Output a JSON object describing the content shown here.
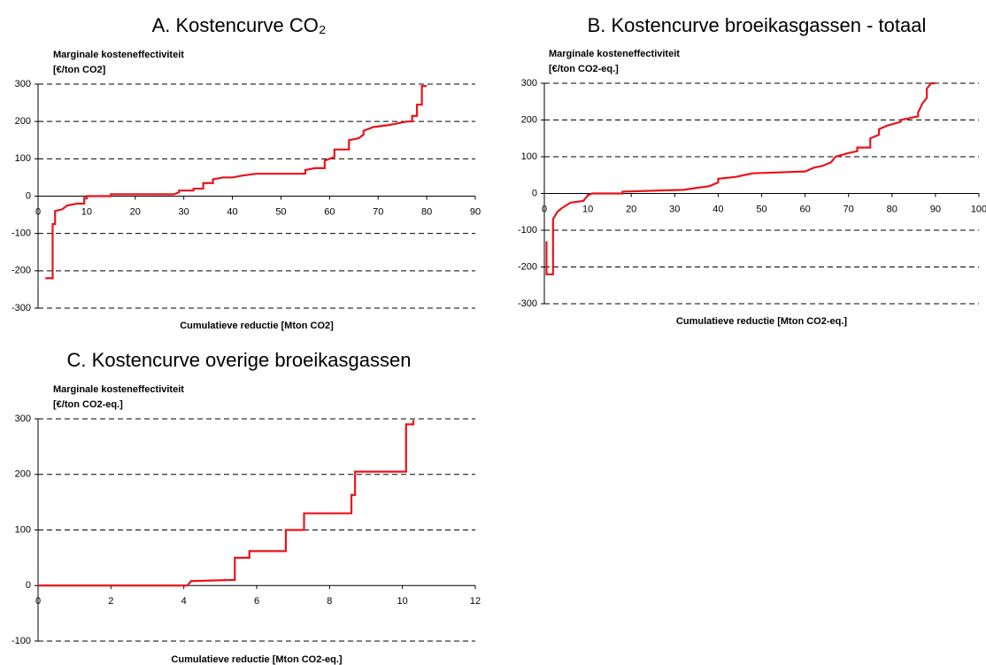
{
  "chart_data": [
    {
      "type": "line",
      "title": "A. Kostencurve CO₂",
      "y_label": [
        "Marginale kosteneffectiviteit",
        "[€/ton CO2]"
      ],
      "x_label": "Cumulatieve reductie [Mton CO2]",
      "xlim": [
        0,
        90
      ],
      "xticks": [
        0,
        10,
        20,
        30,
        40,
        50,
        60,
        70,
        80,
        90
      ],
      "ylim": [
        -300,
        300
      ],
      "yticks": [
        -300,
        -200,
        -100,
        0,
        100,
        200,
        300
      ],
      "grid": true,
      "color": "#e8141c",
      "x": [
        1.5,
        3,
        3,
        3.5,
        3.5,
        5,
        6,
        8,
        9.5,
        9.5,
        10,
        10,
        15,
        15,
        28,
        29,
        29,
        32,
        32,
        34,
        34,
        36,
        36,
        38,
        40,
        42,
        45,
        55,
        55,
        57,
        59,
        59,
        61,
        61,
        64,
        64,
        66,
        67,
        67,
        69,
        72,
        74,
        76,
        77,
        77,
        78,
        78,
        79,
        79,
        80
      ],
      "values": [
        -220,
        -220,
        -75,
        -75,
        -40,
        -35,
        -25,
        -20,
        -20,
        -5,
        -5,
        0,
        0,
        5,
        5,
        10,
        15,
        15,
        20,
        20,
        35,
        35,
        45,
        50,
        50,
        55,
        60,
        60,
        70,
        75,
        75,
        95,
        105,
        125,
        125,
        150,
        155,
        165,
        175,
        185,
        190,
        195,
        200,
        200,
        215,
        215,
        245,
        245,
        295,
        295
      ]
    },
    {
      "type": "line",
      "title": "B. Kostencurve broeikasgassen - totaal",
      "y_label": [
        "Marginale kosteneffectiviteit",
        "[€/ton CO2-eq.]"
      ],
      "x_label": "Cumulatieve reductie [Mton CO2-eq.]",
      "xlim": [
        0,
        100
      ],
      "xticks": [
        0,
        10,
        20,
        30,
        40,
        50,
        60,
        70,
        80,
        90,
        100
      ],
      "ylim": [
        -300,
        300
      ],
      "yticks": [
        -300,
        -200,
        -100,
        0,
        100,
        200,
        300
      ],
      "grid": true,
      "color": "#e8141c",
      "x": [
        0.5,
        0.5,
        2,
        2,
        3,
        4,
        6,
        9,
        10,
        11,
        18,
        18,
        32,
        35,
        38,
        40,
        40,
        44,
        46,
        48,
        60,
        62,
        64,
        66,
        67,
        70,
        72,
        72,
        75,
        75,
        77,
        77,
        79,
        82,
        82,
        86,
        86,
        87,
        88,
        88,
        89,
        90
      ],
      "values": [
        -130,
        -220,
        -220,
        -70,
        -50,
        -40,
        -25,
        -20,
        -5,
        0,
        0,
        5,
        10,
        15,
        20,
        30,
        40,
        45,
        50,
        55,
        60,
        70,
        75,
        85,
        100,
        110,
        115,
        125,
        125,
        150,
        160,
        175,
        185,
        195,
        200,
        210,
        220,
        245,
        260,
        285,
        300,
        300
      ]
    },
    {
      "type": "line",
      "title": "C. Kostencurve overige broeikasgassen",
      "y_label": [
        "Marginale kosteneffectiviteit",
        "[€/ton CO2-eq.]"
      ],
      "x_label": "Cumulatieve reductie [Mton CO2-eq.]",
      "xlim": [
        0,
        12
      ],
      "xticks": [
        0,
        2,
        4,
        6,
        8,
        10,
        12
      ],
      "ylim": [
        -100,
        300
      ],
      "yticks": [
        -100,
        0,
        100,
        200,
        300
      ],
      "grid": true,
      "color": "#e8141c",
      "x": [
        0,
        4.1,
        4.2,
        5.3,
        5.4,
        5.4,
        5.8,
        5.8,
        6.8,
        6.8,
        7.3,
        7.3,
        8.6,
        8.6,
        8.7,
        8.7,
        10.1,
        10.1,
        10.3,
        10.3
      ],
      "values": [
        0,
        0,
        8,
        10,
        10,
        50,
        50,
        62,
        62,
        100,
        100,
        130,
        130,
        163,
        163,
        205,
        205,
        290,
        290,
        298
      ]
    }
  ]
}
